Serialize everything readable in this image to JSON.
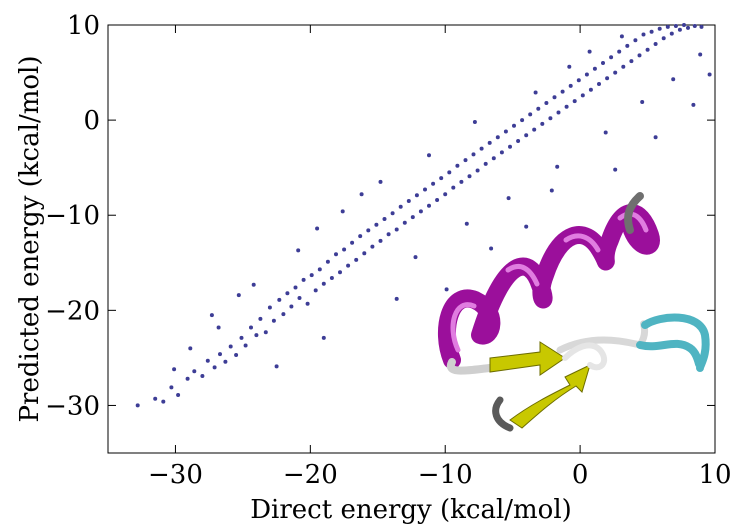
{
  "chart_data": {
    "type": "scatter",
    "title": "",
    "xlabel": "Direct energy (kcal/mol)",
    "ylabel": "Predicted energy (kcal/mol)",
    "xlim": [
      -35,
      10
    ],
    "ylim": [
      -35,
      10
    ],
    "x_ticks": [
      -30,
      -20,
      -10,
      0,
      10
    ],
    "y_ticks": [
      -30,
      -20,
      -10,
      0,
      10
    ],
    "x_tick_labels": [
      "−30",
      "−20",
      "−10",
      "0",
      "10"
    ],
    "y_tick_labels": [
      "−30",
      "−20",
      "−10",
      "0",
      "10"
    ],
    "grid": false,
    "legend": "none",
    "point_color": "#3d3d96",
    "series": [
      {
        "points": [
          [
            -32.8,
            -30.0
          ],
          [
            -31.5,
            -29.3
          ],
          [
            -30.9,
            -29.6
          ],
          [
            -30.3,
            -28.1
          ],
          [
            -29.8,
            -28.9
          ],
          [
            -29.1,
            -27.2
          ],
          [
            -28.6,
            -26.4
          ],
          [
            -28.0,
            -26.9
          ],
          [
            -27.6,
            -25.3
          ],
          [
            -27.1,
            -26.0
          ],
          [
            -26.7,
            -24.6
          ],
          [
            -26.3,
            -25.4
          ],
          [
            -25.9,
            -23.8
          ],
          [
            -25.5,
            -24.7
          ],
          [
            -25.1,
            -22.9
          ],
          [
            -24.8,
            -23.7
          ],
          [
            -24.4,
            -21.8
          ],
          [
            -24.0,
            -22.6
          ],
          [
            -23.7,
            -20.9
          ],
          [
            -23.3,
            -22.3
          ],
          [
            -23.0,
            -19.7
          ],
          [
            -22.7,
            -21.1
          ],
          [
            -22.3,
            -18.9
          ],
          [
            -22.0,
            -20.4
          ],
          [
            -21.7,
            -18.2
          ],
          [
            -21.4,
            -19.6
          ],
          [
            -21.1,
            -17.6
          ],
          [
            -20.8,
            -18.7
          ],
          [
            -20.5,
            -16.8
          ],
          [
            -20.2,
            -19.3
          ],
          [
            -19.9,
            -16.3
          ],
          [
            -19.6,
            -17.9
          ],
          [
            -19.3,
            -15.7
          ],
          [
            -19.0,
            -17.2
          ],
          [
            -18.7,
            -14.9
          ],
          [
            -18.4,
            -16.6
          ],
          [
            -18.1,
            -14.1
          ],
          [
            -17.8,
            -16.0
          ],
          [
            -17.5,
            -13.6
          ],
          [
            -17.2,
            -15.3
          ],
          [
            -16.9,
            -12.9
          ],
          [
            -16.6,
            -14.7
          ],
          [
            -16.3,
            -12.2
          ],
          [
            -16.0,
            -14.0
          ],
          [
            -15.7,
            -11.6
          ],
          [
            -15.4,
            -13.3
          ],
          [
            -15.1,
            -11.0
          ],
          [
            -14.8,
            -12.7
          ],
          [
            -14.5,
            -10.4
          ],
          [
            -14.2,
            -12.0
          ],
          [
            -13.9,
            -9.8
          ],
          [
            -13.6,
            -11.5
          ],
          [
            -13.3,
            -9.1
          ],
          [
            -13.0,
            -10.8
          ],
          [
            -12.7,
            -8.5
          ],
          [
            -12.4,
            -10.2
          ],
          [
            -12.1,
            -7.9
          ],
          [
            -11.8,
            -9.6
          ],
          [
            -11.5,
            -7.3
          ],
          [
            -11.2,
            -9.0
          ],
          [
            -10.9,
            -6.7
          ],
          [
            -10.6,
            -8.4
          ],
          [
            -10.3,
            -6.1
          ],
          [
            -10.0,
            -7.8
          ],
          [
            -9.7,
            -5.5
          ],
          [
            -9.4,
            -7.1
          ],
          [
            -9.1,
            -4.8
          ],
          [
            -8.8,
            -6.5
          ],
          [
            -8.5,
            -4.2
          ],
          [
            -8.2,
            -5.9
          ],
          [
            -7.9,
            -3.6
          ],
          [
            -7.6,
            -5.3
          ],
          [
            -7.3,
            -3.0
          ],
          [
            -7.0,
            -4.6
          ],
          [
            -6.7,
            -2.4
          ],
          [
            -6.4,
            -4.0
          ],
          [
            -6.1,
            -1.8
          ],
          [
            -5.8,
            -3.4
          ],
          [
            -5.5,
            -1.2
          ],
          [
            -5.2,
            -2.8
          ],
          [
            -4.9,
            -0.6
          ],
          [
            -4.6,
            -2.2
          ],
          [
            -4.3,
            0.0
          ],
          [
            -4.0,
            -1.6
          ],
          [
            -3.7,
            0.6
          ],
          [
            -3.4,
            -1.0
          ],
          [
            -3.1,
            1.2
          ],
          [
            -2.8,
            -0.4
          ],
          [
            -2.5,
            1.8
          ],
          [
            -2.2,
            0.2
          ],
          [
            -1.9,
            2.4
          ],
          [
            -1.6,
            0.8
          ],
          [
            -1.3,
            3.0
          ],
          [
            -1.0,
            1.4
          ],
          [
            -0.7,
            3.6
          ],
          [
            -0.4,
            2.0
          ],
          [
            -0.1,
            4.2
          ],
          [
            0.2,
            2.6
          ],
          [
            0.5,
            4.8
          ],
          [
            0.8,
            3.2
          ],
          [
            1.1,
            5.4
          ],
          [
            1.4,
            3.8
          ],
          [
            1.7,
            6.0
          ],
          [
            2.0,
            4.4
          ],
          [
            2.3,
            6.6
          ],
          [
            2.6,
            5.0
          ],
          [
            2.9,
            7.2
          ],
          [
            3.2,
            5.6
          ],
          [
            3.5,
            7.8
          ],
          [
            3.8,
            6.2
          ],
          [
            4.1,
            8.4
          ],
          [
            4.4,
            6.8
          ],
          [
            4.7,
            9.0
          ],
          [
            5.0,
            7.4
          ],
          [
            5.3,
            9.3
          ],
          [
            5.6,
            8.0
          ],
          [
            5.9,
            9.6
          ],
          [
            6.2,
            8.6
          ],
          [
            6.5,
            9.8
          ],
          [
            6.8,
            9.1
          ],
          [
            7.1,
            9.9
          ],
          [
            7.4,
            9.5
          ],
          [
            7.7,
            10.0
          ],
          [
            8.0,
            9.7
          ],
          [
            8.5,
            9.9
          ],
          [
            9.0,
            9.8
          ],
          [
            -22.5,
            -25.9
          ],
          [
            -26.8,
            -21.8
          ],
          [
            -19.0,
            -22.9
          ],
          [
            -13.6,
            -18.8
          ],
          [
            -9.9,
            -17.8
          ],
          [
            -6.6,
            -13.5
          ],
          [
            -4.0,
            -11.2
          ],
          [
            -2.1,
            -7.4
          ],
          [
            2.6,
            -5.2
          ],
          [
            5.6,
            -1.8
          ],
          [
            8.4,
            1.6
          ],
          [
            9.6,
            4.8
          ],
          [
            -25.3,
            -18.4
          ],
          [
            -20.9,
            -13.7
          ],
          [
            -17.6,
            -9.6
          ],
          [
            -14.8,
            -6.5
          ],
          [
            -11.2,
            -3.7
          ],
          [
            -7.8,
            -0.2
          ],
          [
            -27.3,
            -20.5
          ],
          [
            -24.2,
            -17.3
          ],
          [
            -16.2,
            -7.8
          ],
          [
            -19.5,
            -11.4
          ],
          [
            -30.1,
            -26.2
          ],
          [
            -28.9,
            -24.0
          ],
          [
            -12.2,
            -14.4
          ],
          [
            -8.4,
            -10.9
          ],
          [
            -5.3,
            -8.2
          ],
          [
            -1.7,
            -4.9
          ],
          [
            1.9,
            -1.3
          ],
          [
            4.6,
            1.9
          ],
          [
            6.9,
            4.3
          ],
          [
            8.9,
            6.9
          ],
          [
            -3.3,
            2.9
          ],
          [
            -0.8,
            5.6
          ],
          [
            0.7,
            7.2
          ],
          [
            3.1,
            8.8
          ]
        ]
      }
    ]
  }
}
